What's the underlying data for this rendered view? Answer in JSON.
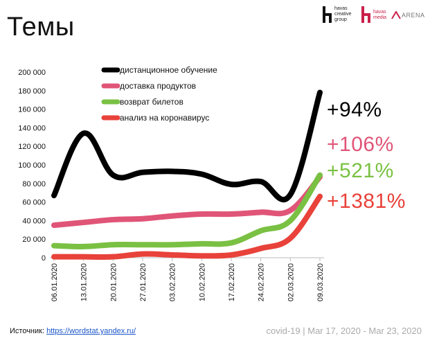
{
  "page": {
    "title": "Темы",
    "source_label": "Источник:",
    "source_link": "https://wordstat.yandex.ru/",
    "footer_note": "covid-19 | Mar 17, 2020 - Mar 23, 2020",
    "logos": {
      "havas_group": [
        "havas",
        "creative",
        "group"
      ],
      "havas_media": [
        "havas",
        "media"
      ],
      "arena": "ARENA"
    }
  },
  "chart_data": {
    "type": "line",
    "categories": [
      "06.01.2020",
      "13.01.2020",
      "20.01.2020",
      "27.01.2020",
      "03.02.2020",
      "10.02.2020",
      "17.02.2020",
      "24.02.2020",
      "02.03.2020",
      "09.03.2020"
    ],
    "ylim": [
      0,
      200000
    ],
    "yticks": [
      0,
      20000,
      40000,
      60000,
      80000,
      100000,
      120000,
      140000,
      160000,
      180000,
      200000
    ],
    "ytick_labels": [
      "0",
      "20 000",
      "40 000",
      "60 000",
      "80 000",
      "100 000",
      "120 000",
      "140 000",
      "160 000",
      "180 000",
      "200 000"
    ],
    "grid": false,
    "legend_position": "top-left",
    "series": [
      {
        "name": "дистанционное обучение",
        "color": "#000000",
        "values": [
          67000,
          134000,
          89000,
          92000,
          93000,
          90000,
          79000,
          82000,
          68000,
          178000
        ],
        "change_label": "+94%"
      },
      {
        "name": "доставка продуктов",
        "color": "#e05577",
        "values": [
          35000,
          38000,
          41000,
          42000,
          45000,
          47000,
          47000,
          49000,
          51000,
          87000
        ],
        "change_label": "+106%"
      },
      {
        "name": "возврат билетов",
        "color": "#7ac143",
        "values": [
          13000,
          12000,
          14000,
          14000,
          14000,
          15000,
          16000,
          29000,
          40000,
          89000
        ],
        "change_label": "+521%"
      },
      {
        "name": "анализ на коронавирус",
        "color": "#e8423a",
        "values": [
          1000,
          1000,
          1000,
          4000,
          3000,
          2000,
          3000,
          10000,
          21000,
          66000
        ],
        "change_label": "+1381%"
      }
    ]
  }
}
